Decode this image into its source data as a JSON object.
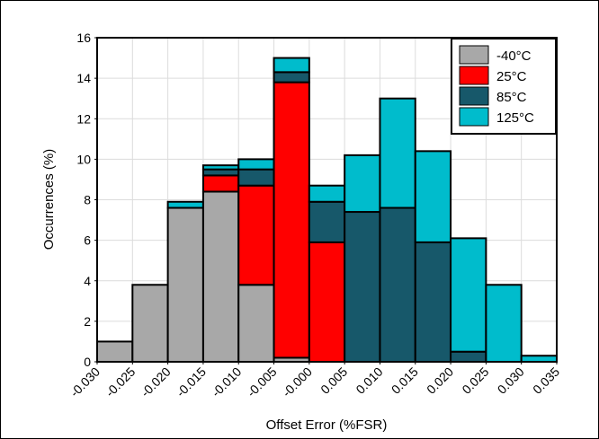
{
  "chart_data": {
    "type": "bar",
    "stacked": true,
    "title": "",
    "xlabel": "Offset Error (%FSR)",
    "ylabel": "Occurrences (%)",
    "xlim": [
      -0.03,
      0.035
    ],
    "ylim": [
      0,
      16
    ],
    "grid": true,
    "legend_position": "top-right",
    "x_ticks": [
      "-0.030",
      "-0.025",
      "-0.020",
      "-0.015",
      "-0.010",
      "-0.005",
      "-0.000",
      "0.005",
      "0.010",
      "0.015",
      "0.020",
      "0.025",
      "0.030",
      "0.035"
    ],
    "y_ticks": [
      "0",
      "2",
      "4",
      "6",
      "8",
      "10",
      "12",
      "14",
      "16"
    ],
    "bin_edges": [
      -0.03,
      -0.025,
      -0.02,
      -0.015,
      -0.01,
      -0.005,
      0.0,
      0.005,
      0.01,
      0.015,
      0.02,
      0.025,
      0.03,
      0.035
    ],
    "series": [
      {
        "name": "-40°C",
        "color": "#a8a8a8",
        "values": [
          1.0,
          3.8,
          7.6,
          8.4,
          3.8,
          0.2,
          0,
          0,
          0,
          0,
          0,
          0,
          0
        ]
      },
      {
        "name": "25°C",
        "color": "#ff0000",
        "values": [
          0,
          0,
          0,
          0.8,
          4.9,
          13.6,
          5.9,
          0,
          0,
          0,
          0,
          0,
          0
        ]
      },
      {
        "name": "85°C",
        "color": "#17586a",
        "values": [
          0,
          0,
          0,
          0.3,
          0.8,
          0.5,
          2.0,
          7.4,
          7.6,
          5.9,
          0.5,
          0,
          0
        ]
      },
      {
        "name": "125°C",
        "color": "#00bccc",
        "values": [
          0,
          0,
          0.3,
          0.2,
          0.5,
          0.7,
          0.8,
          2.8,
          5.4,
          4.5,
          5.6,
          3.8,
          0.3
        ]
      }
    ]
  }
}
